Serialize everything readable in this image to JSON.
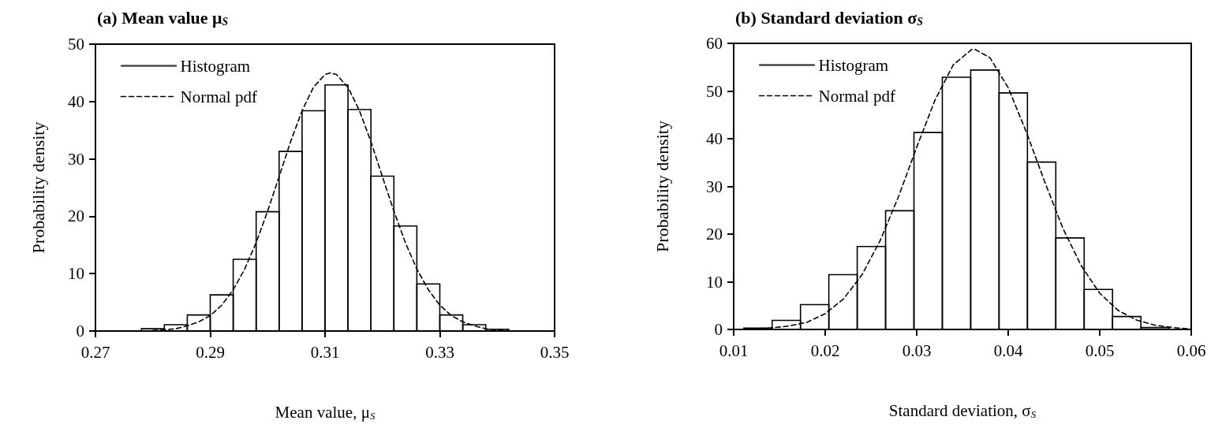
{
  "chart_data": [
    {
      "type": "histogram",
      "title": "(a) Mean value μ$_{S}$",
      "xlabel": "Mean value, μ$_{S}$",
      "ylabel": "Probability density",
      "xlim": [
        0.27,
        0.35
      ],
      "xticks": [
        0.27,
        0.29,
        0.31,
        0.33,
        0.35
      ],
      "ylim": [
        0,
        50
      ],
      "yticks": [
        0,
        10,
        20,
        30,
        40,
        50
      ],
      "legend": "top left",
      "marker": "none",
      "series": [
        {
          "name": "Histogram",
          "color": "#000000",
          "bins": [
            0.278,
            0.282,
            0.286,
            0.29,
            0.294,
            0.298,
            0.302,
            0.306,
            0.31,
            0.314,
            0.318,
            0.322,
            0.326,
            0.33,
            0.334,
            0.338,
            0.342
          ],
          "values": [
            0.4,
            1.1,
            2.8,
            6.3,
            12.5,
            20.8,
            31.3,
            38.4,
            42.9,
            38.6,
            27.0,
            18.3,
            8.2,
            2.8,
            1.1,
            0.3
          ]
        },
        {
          "name": "Normal pdf",
          "type": "line",
          "color": "#000000",
          "line_style": "dashed",
          "x": [
            0.28,
            0.282,
            0.284,
            0.286,
            0.288,
            0.29,
            0.292,
            0.294,
            0.296,
            0.298,
            0.3,
            0.302,
            0.304,
            0.306,
            0.308,
            0.31,
            0.311,
            0.312,
            0.314,
            0.316,
            0.318,
            0.32,
            0.322,
            0.324,
            0.326,
            0.328,
            0.33,
            0.332,
            0.334,
            0.336,
            0.338,
            0.34,
            0.342
          ],
          "values": [
            0.1,
            0.2,
            0.4,
            0.9,
            1.6,
            2.7,
            4.5,
            7.2,
            10.8,
            15.4,
            20.9,
            26.9,
            33.0,
            38.4,
            42.5,
            44.7,
            45.0,
            44.7,
            42.5,
            38.4,
            33.0,
            26.9,
            20.9,
            15.4,
            10.8,
            7.2,
            4.5,
            2.7,
            1.6,
            0.9,
            0.4,
            0.2,
            0.1
          ]
        }
      ]
    },
    {
      "type": "histogram",
      "title": "(b) Standard deviation σ$_{S}$",
      "xlabel": "Standard deviation, σ$_{S}$",
      "ylabel": "Probability density",
      "xlim": [
        0.01,
        0.06
      ],
      "xticks": [
        0.01,
        0.02,
        0.03,
        0.04,
        0.05,
        0.06
      ],
      "ylim": [
        0,
        60
      ],
      "yticks": [
        0,
        10,
        20,
        30,
        40,
        50,
        60
      ],
      "legend": "top left",
      "marker": "none",
      "series": [
        {
          "name": "Histogram",
          "color": "#000000",
          "bins": [
            0.0111,
            0.0142,
            0.0173,
            0.0204,
            0.0235,
            0.0266,
            0.0297,
            0.0328,
            0.0359,
            0.039,
            0.0421,
            0.0452,
            0.0483,
            0.0514,
            0.0545,
            0.0576
          ],
          "values": [
            0.3,
            1.9,
            5.2,
            11.5,
            17.4,
            24.9,
            41.3,
            52.9,
            54.4,
            49.6,
            35.1,
            19.2,
            8.4,
            2.7,
            0.4
          ]
        },
        {
          "name": "Normal pdf",
          "type": "line",
          "color": "#000000",
          "line_style": "dashed",
          "x": [
            0.012,
            0.014,
            0.016,
            0.018,
            0.02,
            0.022,
            0.024,
            0.026,
            0.028,
            0.03,
            0.032,
            0.034,
            0.036,
            0.0363,
            0.038,
            0.04,
            0.042,
            0.044,
            0.046,
            0.048,
            0.05,
            0.052,
            0.054,
            0.056,
            0.058,
            0.06
          ],
          "values": [
            0.1,
            0.3,
            0.7,
            1.5,
            3.3,
            6.4,
            11.4,
            18.6,
            27.8,
            38.2,
            48.1,
            55.5,
            58.7,
            58.8,
            57.0,
            50.7,
            41.3,
            30.9,
            21.1,
            13.3,
            7.6,
            4.0,
            2.0,
            0.9,
            0.4,
            0.1
          ]
        }
      ]
    }
  ]
}
